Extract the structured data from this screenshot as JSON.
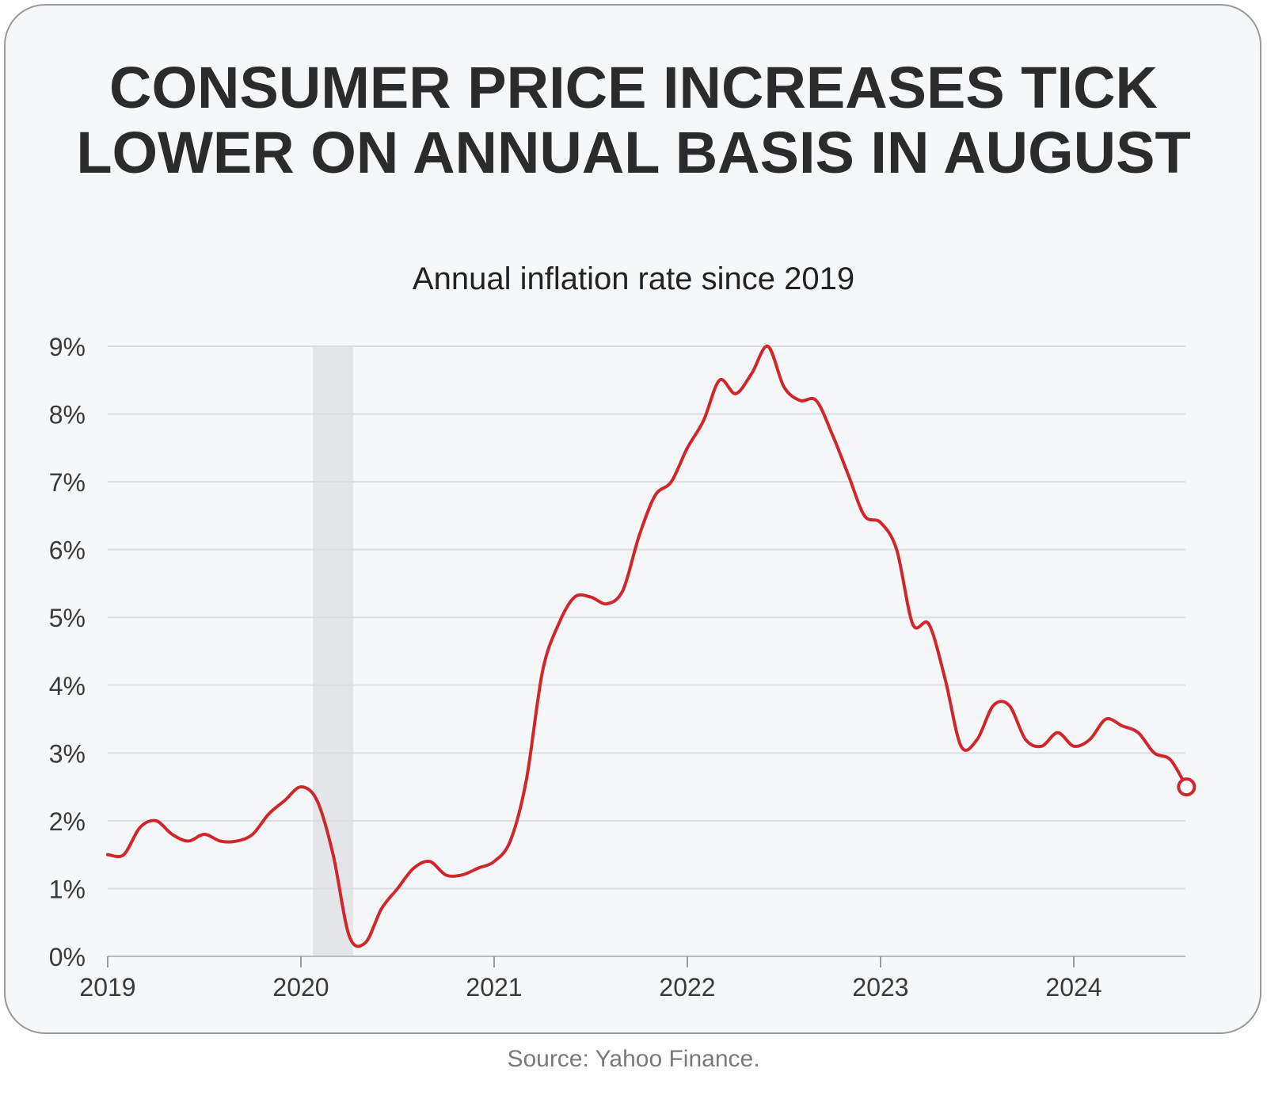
{
  "source": "Source: Yahoo Finance.",
  "colors": {
    "line": "#d0272d",
    "grid": "#dcdde0",
    "recession": "#e4e5e8",
    "text": "#2b2b2b"
  },
  "chart_data": {
    "type": "line",
    "title": "CONSUMER PRICE INCREASES TICK LOWER ON ANNUAL BASIS IN AUGUST",
    "subtitle": "Annual inflation rate since 2019",
    "xlabel": "",
    "ylabel": "",
    "ylim": [
      0,
      9
    ],
    "yticks": [
      "0%",
      "1%",
      "2%",
      "3%",
      "4%",
      "5%",
      "6%",
      "7%",
      "8%",
      "9%"
    ],
    "xticks": [
      "2019",
      "2020",
      "2021",
      "2022",
      "2023",
      "2024"
    ],
    "grid": true,
    "shaded_period": {
      "start": "2020-02",
      "end": "2020-04"
    },
    "x": [
      "2019-01",
      "2019-02",
      "2019-03",
      "2019-04",
      "2019-05",
      "2019-06",
      "2019-07",
      "2019-08",
      "2019-09",
      "2019-10",
      "2019-11",
      "2019-12",
      "2020-01",
      "2020-02",
      "2020-03",
      "2020-04",
      "2020-05",
      "2020-06",
      "2020-07",
      "2020-08",
      "2020-09",
      "2020-10",
      "2020-11",
      "2020-12",
      "2021-01",
      "2021-02",
      "2021-03",
      "2021-04",
      "2021-05",
      "2021-06",
      "2021-07",
      "2021-08",
      "2021-09",
      "2021-10",
      "2021-11",
      "2021-12",
      "2022-01",
      "2022-02",
      "2022-03",
      "2022-04",
      "2022-05",
      "2022-06",
      "2022-07",
      "2022-08",
      "2022-09",
      "2022-10",
      "2022-11",
      "2022-12",
      "2023-01",
      "2023-02",
      "2023-03",
      "2023-04",
      "2023-05",
      "2023-06",
      "2023-07",
      "2023-08",
      "2023-09",
      "2023-10",
      "2023-11",
      "2023-12",
      "2024-01",
      "2024-02",
      "2024-03",
      "2024-04",
      "2024-05",
      "2024-06",
      "2024-07",
      "2024-08"
    ],
    "series": [
      {
        "values": [
          1.5,
          1.5,
          1.9,
          2.0,
          1.8,
          1.7,
          1.8,
          1.7,
          1.7,
          1.8,
          2.1,
          2.3,
          2.5,
          2.3,
          1.5,
          0.3,
          0.2,
          0.7,
          1.0,
          1.3,
          1.4,
          1.2,
          1.2,
          1.3,
          1.4,
          1.7,
          2.6,
          4.2,
          4.9,
          5.3,
          5.3,
          5.2,
          5.4,
          6.2,
          6.8,
          7.0,
          7.5,
          7.9,
          8.5,
          8.3,
          8.6,
          9.0,
          8.4,
          8.2,
          8.2,
          7.7,
          7.1,
          6.5,
          6.4,
          6.0,
          4.9,
          4.9,
          4.1,
          3.1,
          3.2,
          3.7,
          3.7,
          3.2,
          3.1,
          3.3,
          3.1,
          3.2,
          3.5,
          3.4,
          3.3,
          3.0,
          2.9,
          2.5
        ]
      }
    ]
  }
}
